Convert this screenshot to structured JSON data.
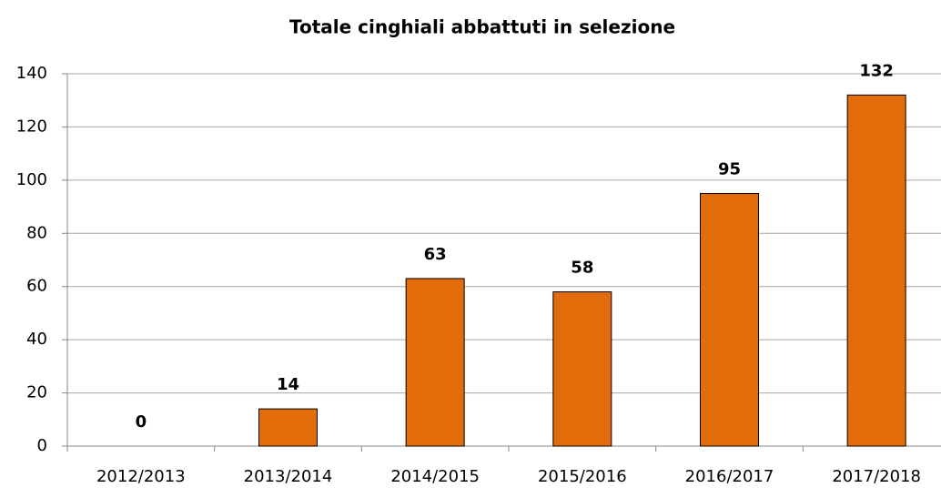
{
  "chart_data": {
    "type": "bar",
    "title": "Totale cinghiali abbattuti in selezione",
    "categories": [
      "2012/2013",
      "2013/2014",
      "2014/2015",
      "2015/2016",
      "2016/2017",
      "2017/2018"
    ],
    "values": [
      0,
      14,
      63,
      58,
      95,
      132
    ],
    "color": "#e36c0a",
    "ylim": [
      0,
      140
    ],
    "yticks": [
      0,
      20,
      40,
      60,
      80,
      100,
      120,
      140
    ],
    "grid": true
  }
}
